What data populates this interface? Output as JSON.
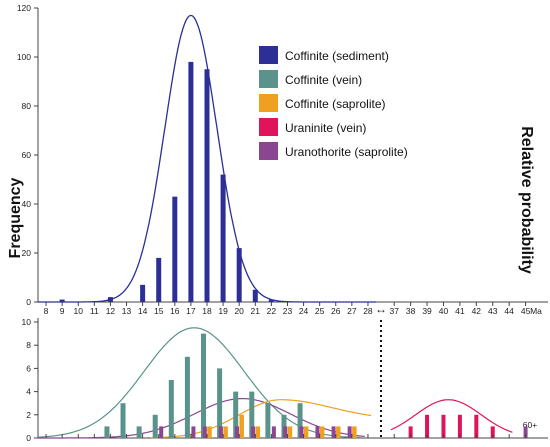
{
  "colors": {
    "sediment": "#2b2f96",
    "vein": "#5a938c",
    "saprolite": "#f0a020",
    "uraninite": "#e0145a",
    "uranothorite": "#8a4690",
    "axis": "#444444",
    "break_marker": "#111111"
  },
  "chart_data": [
    {
      "type": "bar",
      "panel": "top",
      "ylabel": "Frequency",
      "ylabel_right": "Relative probability",
      "ylim": [
        0,
        120
      ],
      "xlim": [
        7.5,
        28.5
      ],
      "x_ticks": [
        8,
        9,
        10,
        11,
        12,
        13,
        14,
        15,
        16,
        17,
        18,
        19,
        20,
        21,
        22,
        23,
        24,
        25,
        26,
        27,
        28
      ],
      "y_ticks": [
        0,
        20,
        40,
        60,
        80,
        100,
        120
      ],
      "legend_position": "top-right",
      "series": [
        {
          "name": "Coffinite (sediment)",
          "color_key": "sediment",
          "x": [
            9,
            12,
            14,
            15,
            16,
            17,
            18,
            19,
            20,
            21,
            22
          ],
          "values": [
            1,
            2,
            7,
            18,
            43,
            98,
            95,
            52,
            22,
            5,
            1
          ]
        }
      ],
      "curves": [
        {
          "series": "Coffinite (sediment)",
          "color_key": "sediment",
          "mean": 17,
          "sd": 1.62,
          "peak": 117
        }
      ]
    },
    {
      "type": "bar",
      "panel": "bottom",
      "ylim": [
        0,
        10
      ],
      "y_ticks": [
        0,
        2,
        4,
        6,
        8,
        10
      ],
      "x_segments": [
        {
          "xlim": [
            7.5,
            28.5
          ],
          "ticks": [
            8,
            9,
            10,
            11,
            12,
            13,
            14,
            15,
            16,
            17,
            18,
            19,
            20,
            21,
            22,
            23,
            24,
            25,
            26,
            27,
            28
          ]
        },
        {
          "xlim": [
            36.5,
            46
          ],
          "ticks": [
            37,
            38,
            39,
            40,
            41,
            42,
            43,
            44,
            45
          ]
        }
      ],
      "x_unit": "Ma",
      "break_annotation": "↔",
      "overflow_annotation": "60+",
      "series": [
        {
          "name": "Coffinite (vein)",
          "color_key": "vein",
          "x": [
            12,
            13,
            14,
            15,
            16,
            17,
            18,
            19,
            20,
            21,
            22,
            23,
            24
          ],
          "values": [
            1,
            3,
            1,
            2,
            5,
            7,
            9,
            6,
            4,
            4,
            3,
            2,
            3
          ]
        },
        {
          "name": "Coffinite (saprolite)",
          "color_key": "saprolite",
          "x": [
            18,
            19,
            20,
            21,
            23,
            24,
            25,
            26,
            27
          ],
          "values": [
            1,
            1,
            2,
            1,
            1,
            1,
            1,
            1,
            1
          ]
        },
        {
          "name": "Uraninite (vein)",
          "color_key": "uraninite",
          "x": [
            38,
            39,
            40,
            41,
            42,
            43
          ],
          "values": [
            1,
            2,
            2,
            2,
            2,
            1
          ]
        },
        {
          "name": "Uranothorite (saprolite)",
          "color_key": "uranothorite",
          "x": [
            15,
            17,
            18,
            19,
            20,
            21,
            22,
            23,
            24,
            25,
            26,
            27,
            45
          ],
          "values": [
            1,
            1,
            1,
            1,
            1,
            1,
            1,
            1,
            1,
            1,
            1,
            1,
            1
          ]
        }
      ],
      "curves": [
        {
          "series": "Coffinite (vein)",
          "color_key": "vein",
          "segment": 0,
          "mean": 17.2,
          "sd": 3.1,
          "peak": 9.5,
          "range": [
            7.5,
            27.5
          ]
        },
        {
          "series": "Uranothorite (saprolite)",
          "color_key": "uranothorite",
          "segment": 0,
          "mean": 20.2,
          "sd": 3.0,
          "peak": 3.4,
          "range": [
            7.5,
            27.8
          ]
        },
        {
          "series": "Coffinite (saprolite)",
          "color_key": "saprolite",
          "segment": 0,
          "mean": 22.6,
          "sd": 2.6,
          "peak": 3.3,
          "range": [
            14.5,
            28.2
          ],
          "tail": 1.6
        },
        {
          "series": "Uraninite (vein)",
          "color_key": "uraninite",
          "segment": 1,
          "mean": 40.3,
          "sd": 2.0,
          "peak": 3.3,
          "range": [
            36.8,
            44.2
          ]
        }
      ]
    }
  ]
}
